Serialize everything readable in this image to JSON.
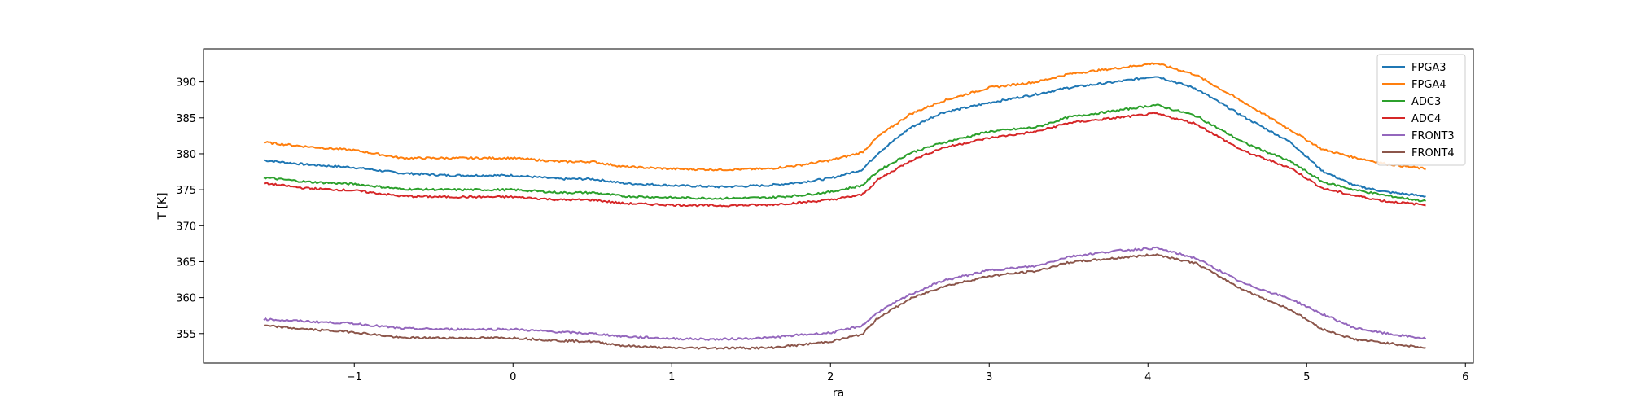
{
  "chart_data": {
    "type": "line",
    "title": "",
    "xlabel": "ra",
    "ylabel": "T [K]",
    "xlim": [
      -1.95,
      6.05
    ],
    "ylim": [
      350.9,
      394.6
    ],
    "xticks": [
      -1,
      0,
      1,
      2,
      3,
      4,
      5,
      6
    ],
    "yticks": [
      355,
      360,
      365,
      370,
      375,
      380,
      385,
      390
    ],
    "xtick_labels": [
      "−1",
      "0",
      "1",
      "2",
      "3",
      "4",
      "5",
      "6"
    ],
    "ytick_labels": [
      "355",
      "360",
      "365",
      "370",
      "375",
      "380",
      "385",
      "390"
    ],
    "grid": false,
    "legend_position": "upper right",
    "x": [
      -1.57,
      -1.3,
      -1.0,
      -0.7,
      -0.4,
      0.0,
      0.3,
      0.5,
      0.7,
      1.0,
      1.3,
      1.6,
      1.8,
      2.0,
      2.2,
      2.3,
      2.5,
      2.7,
      3.0,
      3.3,
      3.5,
      3.8,
      4.05,
      4.3,
      4.6,
      4.9,
      5.1,
      5.3,
      5.5,
      5.75
    ],
    "series": [
      {
        "name": "FPGA3",
        "color": "#1f77b4",
        "values": [
          379.1,
          378.5,
          378.1,
          377.3,
          377.0,
          377.0,
          376.5,
          376.5,
          375.9,
          375.6,
          375.4,
          375.6,
          376.0,
          376.6,
          377.8,
          380.1,
          383.6,
          385.7,
          387.1,
          388.3,
          389.2,
          390.0,
          390.8,
          389.1,
          385.2,
          381.6,
          377.6,
          375.6,
          374.7,
          374.1
        ]
      },
      {
        "name": "FPGA4",
        "color": "#ff7f0e",
        "values": [
          381.6,
          381.0,
          380.5,
          379.4,
          379.4,
          379.4,
          378.9,
          378.9,
          378.2,
          377.9,
          377.8,
          377.9,
          378.4,
          379.1,
          380.2,
          382.4,
          385.5,
          387.3,
          389.2,
          390.0,
          391.1,
          391.9,
          392.6,
          391.0,
          387.2,
          383.3,
          380.6,
          379.5,
          378.6,
          377.9
        ]
      },
      {
        "name": "ADC3",
        "color": "#2ca02c",
        "values": [
          376.7,
          376.1,
          375.8,
          375.1,
          375.0,
          375.0,
          374.6,
          374.6,
          374.1,
          373.9,
          373.8,
          373.9,
          374.2,
          374.7,
          375.6,
          377.6,
          380.1,
          381.5,
          383.1,
          383.7,
          385.1,
          386.0,
          386.8,
          385.3,
          381.6,
          378.9,
          376.1,
          375.0,
          374.2,
          373.4
        ]
      },
      {
        "name": "ADC4",
        "color": "#d62728",
        "values": [
          375.9,
          375.2,
          374.9,
          374.1,
          374.0,
          374.0,
          373.6,
          373.6,
          373.1,
          372.9,
          372.8,
          372.9,
          373.2,
          373.6,
          374.3,
          376.4,
          379.0,
          380.8,
          382.2,
          383.1,
          384.3,
          385.0,
          385.6,
          384.2,
          380.4,
          378.0,
          375.2,
          374.2,
          373.4,
          372.9
        ]
      },
      {
        "name": "FRONT3",
        "color": "#9467bd",
        "values": [
          357.0,
          356.7,
          356.4,
          355.7,
          355.6,
          355.6,
          355.2,
          355.0,
          354.6,
          354.3,
          354.2,
          354.4,
          354.8,
          355.1,
          356.1,
          358.0,
          360.4,
          362.3,
          363.8,
          364.4,
          365.7,
          366.5,
          366.9,
          365.5,
          362.0,
          359.8,
          357.7,
          355.8,
          355.0,
          354.3
        ]
      },
      {
        "name": "FRONT4",
        "color": "#8c564b",
        "values": [
          356.1,
          355.6,
          355.2,
          354.4,
          354.4,
          354.4,
          354.0,
          353.9,
          353.3,
          353.0,
          353.0,
          353.0,
          353.4,
          353.9,
          354.9,
          357.2,
          359.8,
          361.5,
          363.0,
          363.7,
          364.9,
          365.5,
          366.0,
          364.8,
          361.1,
          358.3,
          355.6,
          354.2,
          353.7,
          353.0
        ]
      }
    ]
  }
}
